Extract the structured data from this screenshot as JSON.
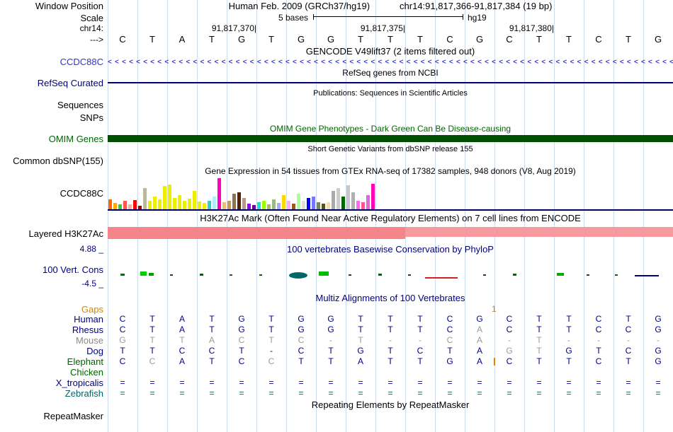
{
  "colors": {
    "gridline": "#cfdcee",
    "gene_blue": "#3333cc",
    "refseq_navy": "#000074",
    "omim_green": "#006400",
    "omim_bar": "#004f00",
    "h3k27ac_salmon": "#f4858a",
    "phylop_navy": "#000080",
    "gaps_orange": "#cc8800",
    "multiz_letter": "#00008b",
    "gray_letter": "#9a9a9a"
  },
  "header": {
    "window_position_label": "Window Position",
    "assembly": "Human Feb. 2009 (GRCh37/hg19)",
    "position": "chr14:91,817,366-91,817,384 (19 bp)",
    "scale_label": "Scale",
    "scale_bases": "5 bases",
    "scale_assembly": "hg19",
    "chrom_label": "chr14:",
    "ruler_ticks": [
      {
        "text": "91,817,370",
        "tick_x": 210
      },
      {
        "text": "91,817,375",
        "tick_x": 420
      },
      {
        "text": "91,817,380",
        "tick_x": 630
      }
    ],
    "strand_label": "--->",
    "sequence": [
      "C",
      "T",
      "A",
      "T",
      "G",
      "T",
      "G",
      "G",
      "T",
      "T",
      "T",
      "C",
      "G",
      "C",
      "T",
      "T",
      "C",
      "T",
      "G"
    ]
  },
  "tracks": {
    "gencode": {
      "header": "GENCODE V49lift37 (2 items filtered out)",
      "gene_label": "CCDC88C",
      "arrow_char": "<",
      "arrow_count": 84
    },
    "refseq": {
      "header": "RefSeq genes from NCBI",
      "label": "RefSeq Curated"
    },
    "publications": {
      "header": "Publications: Sequences in Scientific Articles",
      "row1": "Sequences",
      "row2": "SNPs"
    },
    "omim": {
      "header": "OMIM Gene Phenotypes - Dark Green Can Be Disease-causing",
      "label": "OMIM Genes"
    },
    "dbsnp": {
      "header": "Short Genetic Variants from dbSNP release 155",
      "label": "Common dbSNP(155)"
    },
    "gtex": {
      "header": "Gene Expression in 54 tissues from GTEx RNA-seq of 17382 samples, 948 donors (V8, Aug 2019)",
      "label": "CCDC88C",
      "bars": [
        [
          "#ff6600",
          14
        ],
        [
          "#ffaa00",
          9
        ],
        [
          "#33cc33",
          7
        ],
        [
          "#ff5555",
          12
        ],
        [
          "#ffaa99",
          7
        ],
        [
          "#ff0000",
          13
        ],
        [
          "#aa0000",
          5
        ],
        [
          "#b8b89a",
          30
        ],
        [
          "#eeee00",
          12
        ],
        [
          "#eeee00",
          18
        ],
        [
          "#eeee00",
          14
        ],
        [
          "#eeee00",
          33
        ],
        [
          "#eeee00",
          35
        ],
        [
          "#eeee00",
          16
        ],
        [
          "#eeee00",
          20
        ],
        [
          "#eeee00",
          12
        ],
        [
          "#eeee00",
          15
        ],
        [
          "#eeee00",
          26
        ],
        [
          "#eeee00",
          11
        ],
        [
          "#eeee00",
          9
        ],
        [
          "#33cccc",
          12
        ],
        [
          "#aaeeff",
          18
        ],
        [
          "#ff00bb",
          44
        ],
        [
          "#eebb77",
          10
        ],
        [
          "#cc9955",
          12
        ],
        [
          "#8b7355",
          22
        ],
        [
          "#552200",
          24
        ],
        [
          "#bb9988",
          16
        ],
        [
          "#9900ff",
          8
        ],
        [
          "#660099",
          6
        ],
        [
          "#22ddcc",
          10
        ],
        [
          "#99ff00",
          12
        ],
        [
          "#aabb66",
          7
        ],
        [
          "#99bb88",
          14
        ],
        [
          "#aaaaff",
          9
        ],
        [
          "#ffd700",
          20
        ],
        [
          "#ffaaff",
          12
        ],
        [
          "#995522",
          8
        ],
        [
          "#aaff99",
          22
        ],
        [
          "#dddddd",
          12
        ],
        [
          "#0000ff",
          16
        ],
        [
          "#7777ff",
          18
        ],
        [
          "#778855",
          10
        ],
        [
          "#555522",
          8
        ],
        [
          "#ffdd99",
          10
        ],
        [
          "#aaaaaa",
          26
        ],
        [
          "#cccccc",
          30
        ],
        [
          "#006600",
          18
        ],
        [
          "#c8c8c8",
          34
        ],
        [
          "#b0b0b0",
          24
        ],
        [
          "#ff66ff",
          12
        ],
        [
          "#ff5599",
          10
        ],
        [
          "#dd66dd",
          20
        ],
        [
          "#ff00bb",
          36
        ]
      ]
    },
    "h3k27ac": {
      "header": "H3K27Ac Mark (Often Found Near Active Regulatory Elements) on 7 cell lines from ENCODE",
      "label": "Layered H3K27Ac"
    },
    "phylop": {
      "header": "100 vertebrates Basewise Conservation by PhyloP",
      "label": "100 Vert. Cons",
      "max_label": "4.88 _",
      "min_label": "-4.5 _",
      "marks": [
        [
          18,
          6,
          3,
          "#007700",
          25,
          0
        ],
        [
          46,
          9,
          6,
          "#00cc00",
          22,
          0
        ],
        [
          58,
          7,
          4,
          "#00a000",
          24,
          0
        ],
        [
          88,
          4,
          2,
          "#333333",
          26,
          0
        ],
        [
          130,
          5,
          3,
          "#006600",
          25,
          0
        ],
        [
          172,
          4,
          2,
          "#444444",
          26,
          0
        ],
        [
          214,
          4,
          2,
          "#006600",
          26,
          0
        ],
        [
          256,
          26,
          9,
          "#006868",
          23,
          1
        ],
        [
          298,
          14,
          6,
          "#00bb00",
          22,
          0
        ],
        [
          340,
          4,
          2,
          "#333333",
          26,
          0
        ],
        [
          382,
          5,
          3,
          "#006600",
          25,
          0
        ],
        [
          424,
          4,
          2,
          "#333333",
          26,
          0
        ],
        [
          448,
          46,
          2,
          "#cc2222",
          30,
          0
        ],
        [
          530,
          4,
          2,
          "#333333",
          26,
          0
        ],
        [
          572,
          5,
          3,
          "#006600",
          25,
          0
        ],
        [
          634,
          10,
          4,
          "#00aa00",
          24,
          0
        ],
        [
          676,
          4,
          2,
          "#333333",
          26,
          0
        ],
        [
          716,
          4,
          2,
          "#006600",
          26,
          0
        ],
        [
          744,
          34,
          2,
          "#000080",
          27,
          0
        ]
      ]
    },
    "multiz": {
      "header": "Multiz Alignments of 100 Vertebrates",
      "gaps": {
        "label": "Gaps",
        "value": "1",
        "col_boundary": 13
      },
      "species": [
        {
          "name": "Human",
          "label_color": "#000080",
          "letter_color": "#00008b",
          "letters": [
            "C",
            "T",
            "A",
            "T",
            "G",
            "T",
            "G",
            "G",
            "T",
            "T",
            "T",
            "C",
            "G",
            "C",
            "T",
            "T",
            "C",
            "T",
            "G"
          ],
          "gray_cols": []
        },
        {
          "name": "Rhesus",
          "label_color": "#000080",
          "letter_color": "#00008b",
          "letters": [
            "C",
            "T",
            "A",
            "T",
            "G",
            "T",
            "G",
            "G",
            "T",
            "T",
            "T",
            "C",
            "A",
            "C",
            "T",
            "T",
            "C",
            "C",
            "G"
          ],
          "gray_cols": [
            12
          ]
        },
        {
          "name": "Mouse",
          "label_color": "#8a8a8a",
          "letter_color": "#9a9a9a",
          "letters": [
            "G",
            "T",
            "T",
            "A",
            "C",
            "T",
            "C",
            "-",
            "T",
            "-",
            "-",
            "C",
            "A",
            "-",
            "T",
            "-",
            "-",
            "-",
            "-"
          ],
          "gray_cols": []
        },
        {
          "name": "Dog",
          "label_color": "#000080",
          "letter_color": "#00008b",
          "letters": [
            "T",
            "T",
            "C",
            "C",
            "T",
            "-",
            "C",
            "T",
            "G",
            "T",
            "C",
            "T",
            "A",
            "G",
            "T",
            "G",
            "T",
            "C",
            "G"
          ],
          "gray_cols": [
            13,
            14
          ]
        },
        {
          "name": "Elephant",
          "label_color": "#006400",
          "letter_color": "#00008b",
          "letters": [
            "C",
            "C",
            "A",
            "T",
            "C",
            "C",
            "T",
            "T",
            "A",
            "T",
            "T",
            "G",
            "A",
            "C",
            "T",
            "T",
            "C",
            "T",
            "G"
          ],
          "gray_cols": [
            1,
            5
          ],
          "insert_boundaries": [
            13
          ]
        },
        {
          "name": "Chicken",
          "label_color": "#006400",
          "letter_color": "#00008b",
          "letters": [
            "",
            "",
            "",
            "",
            "",
            "",
            "",
            "",
            "",
            "",
            "",
            "",
            "",
            "",
            "",
            "",
            "",
            "",
            ""
          ],
          "gray_cols": []
        },
        {
          "name": "X_tropicalis",
          "label_color": "#000080",
          "letter_color": "#00008b",
          "letters": [
            "=",
            "=",
            "=",
            "=",
            "=",
            "=",
            "=",
            "=",
            "=",
            "=",
            "=",
            "=",
            "=",
            "=",
            "=",
            "=",
            "=",
            "=",
            "="
          ],
          "gray_cols": []
        },
        {
          "name": "Zebrafish",
          "label_color": "#006464",
          "letter_color": "#006464",
          "letters": [
            "=",
            "=",
            "=",
            "=",
            "=",
            "=",
            "=",
            "=",
            "=",
            "=",
            "=",
            "=",
            "=",
            "=",
            "=",
            "=",
            "=",
            "=",
            "="
          ],
          "gray_cols": []
        }
      ]
    },
    "repeatmasker": {
      "header": "Repeating Elements by RepeatMasker",
      "label": "RepeatMasker"
    }
  }
}
